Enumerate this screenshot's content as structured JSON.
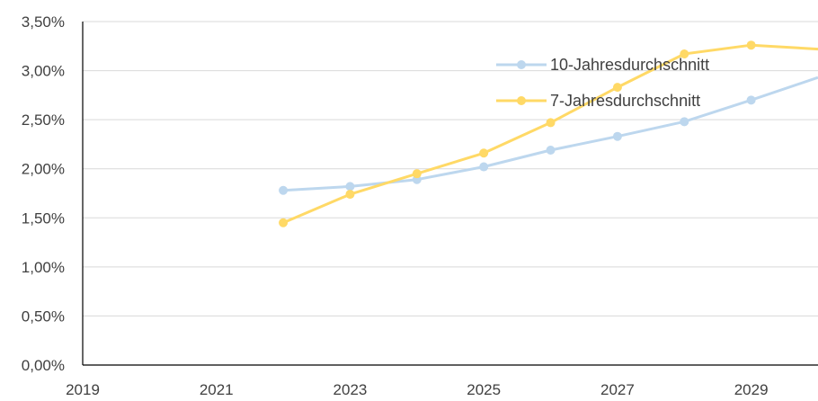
{
  "chart_data": {
    "type": "line",
    "title": "",
    "xlabel": "",
    "ylabel": "",
    "xlim": [
      2019,
      2030
    ],
    "ylim": [
      0,
      0.035
    ],
    "x_ticks": [
      "2019",
      "2021",
      "2023",
      "2025",
      "2027",
      "2029"
    ],
    "y_ticks": [
      "0,00%",
      "0,50%",
      "1,00%",
      "1,50%",
      "2,00%",
      "2,50%",
      "3,00%",
      "3,50%"
    ],
    "grid": true,
    "legend": "top-right, inside plot",
    "series": [
      {
        "name": "10-Jahresdurchschnitt",
        "color": "#bdd7ee",
        "x": [
          2022,
          2023,
          2024,
          2025,
          2026,
          2027,
          2028,
          2029,
          2030
        ],
        "y": [
          0.0178,
          0.0182,
          0.0189,
          0.0202,
          0.0219,
          0.0233,
          0.0248,
          0.027,
          0.0293
        ]
      },
      {
        "name": "7-Jahresdurchschnitt",
        "color": "#ffd966",
        "x": [
          2022,
          2023,
          2024,
          2025,
          2026,
          2027,
          2028,
          2029,
          2030
        ],
        "y": [
          0.0145,
          0.0174,
          0.0195,
          0.0216,
          0.0247,
          0.0283,
          0.0317,
          0.0326,
          0.0322
        ]
      }
    ]
  }
}
